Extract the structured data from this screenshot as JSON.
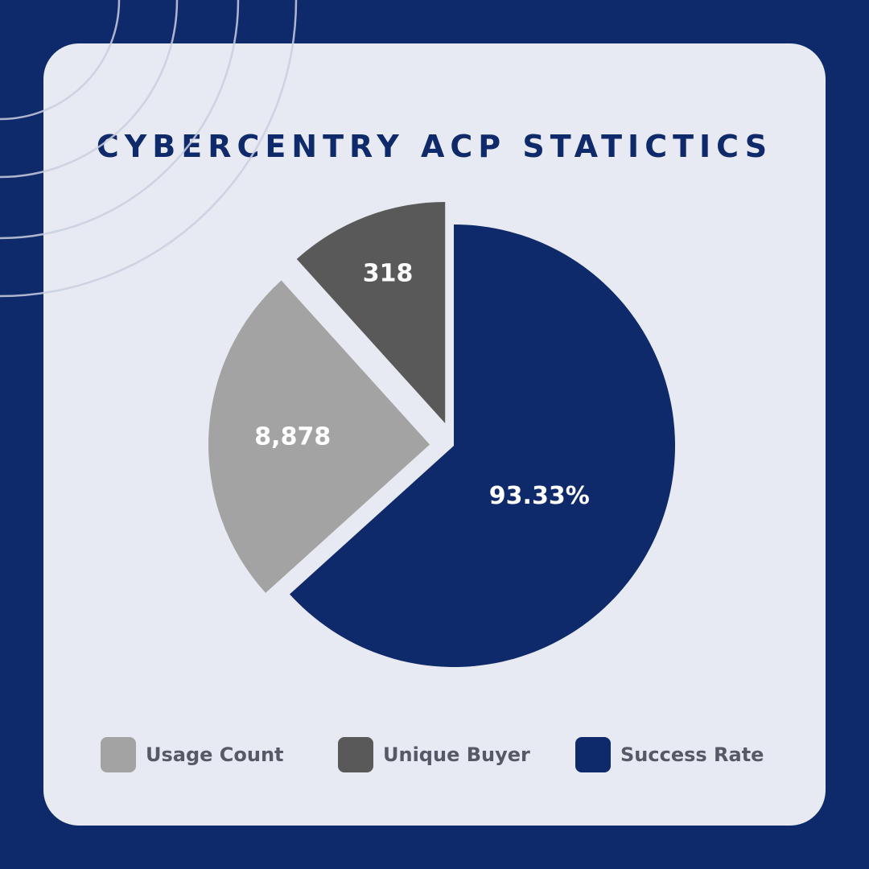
{
  "chart_data": {
    "type": "pie",
    "title": "CYBERCENTRY ACP STATICTICS",
    "slices": [
      {
        "name": "Usage Count",
        "label": "8,878",
        "share": 0.25,
        "color": "#a3a3a3"
      },
      {
        "name": "Unique Buyer",
        "label": "318",
        "share": 0.117,
        "color": "#595959"
      },
      {
        "name": "Success Rate",
        "label": "93.33%",
        "share": 0.633,
        "color": "#0f2a6b"
      }
    ],
    "legend_position": "bottom"
  },
  "colors": {
    "background": "#0f2a6b",
    "card": "#e7eaf2",
    "title": "#0f2a6b",
    "slice_label": "#ffffff",
    "legend_text": "#555a66"
  }
}
